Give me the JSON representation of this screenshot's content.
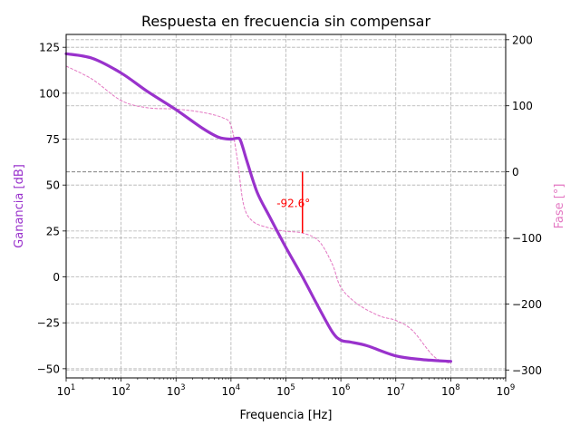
{
  "chart_data": {
    "type": "line",
    "title": "Respuesta en frecuencia sin compensar",
    "xlabel": "Frequencia [Hz]",
    "ylabel_left": "Ganancia [dB]",
    "ylabel_right": "Fase [°]",
    "x_scale": "log",
    "xlim": [
      10,
      1000000000
    ],
    "ylim_left": [
      -55,
      132
    ],
    "ylim_right": [
      -312,
      208
    ],
    "grid": true,
    "x_ticks": [
      {
        "value": 10,
        "base": "10",
        "exp": "1"
      },
      {
        "value": 100,
        "base": "10",
        "exp": "2"
      },
      {
        "value": 1000,
        "base": "10",
        "exp": "3"
      },
      {
        "value": 10000,
        "base": "10",
        "exp": "4"
      },
      {
        "value": 100000,
        "base": "10",
        "exp": "5"
      },
      {
        "value": 1000000,
        "base": "10",
        "exp": "6"
      },
      {
        "value": 10000000,
        "base": "10",
        "exp": "7"
      },
      {
        "value": 100000000,
        "base": "10",
        "exp": "8"
      },
      {
        "value": 1000000000,
        "base": "10",
        "exp": "9"
      }
    ],
    "y_ticks_left": [
      125,
      100,
      75,
      50,
      25,
      0,
      -25,
      -50
    ],
    "y_tick_labels_left": [
      "125",
      "100",
      "75",
      "50",
      "25",
      "0",
      "−25",
      "−50"
    ],
    "y_ticks_right": [
      200,
      100,
      0,
      -100,
      -200,
      -300
    ],
    "y_tick_labels_right": [
      "200",
      "100",
      "0",
      "−100",
      "−200",
      "−300"
    ],
    "colors": {
      "gain": "#9932CC",
      "phase": "#E377C2",
      "margin": "#FF0000",
      "reference": "#808080"
    },
    "series": [
      {
        "name": "Ganancia",
        "axis": "left",
        "style": "solid",
        "x": [
          10,
          30,
          100,
          300,
          1000,
          3000,
          6000,
          10000,
          13000,
          15000,
          20000,
          30000,
          50000,
          100000,
          200000,
          400000,
          700000,
          1000000,
          1500000,
          3000000,
          10000000,
          30000000,
          100000000
        ],
        "values": [
          121.5,
          119,
          111,
          101,
          91,
          81,
          76,
          75,
          75.5,
          74,
          62,
          46,
          33,
          16,
          0,
          -17,
          -30,
          -34.5,
          -35.5,
          -37.5,
          -43,
          -45,
          -46
        ]
      },
      {
        "name": "Fase",
        "axis": "right",
        "style": "dashed",
        "x": [
          10,
          30,
          100,
          300,
          1000,
          3000,
          7000,
          10000,
          13000,
          17000,
          25000,
          50000,
          100000,
          200000,
          400000,
          700000,
          1000000,
          2000000,
          5000000,
          10000000,
          20000000,
          50000000,
          100000000
        ],
        "values": [
          160,
          140,
          108,
          97,
          95,
          90,
          82,
          70,
          20,
          -50,
          -75,
          -85,
          -90,
          -92.6,
          -105,
          -140,
          -175,
          -200,
          -218,
          -225,
          -240,
          -280,
          -290
        ]
      }
    ],
    "reference_line": {
      "axis": "right",
      "value": 0
    },
    "phase_margin": {
      "x": 200000,
      "from": -92.6,
      "to": 0,
      "label": "-92.6°"
    }
  }
}
